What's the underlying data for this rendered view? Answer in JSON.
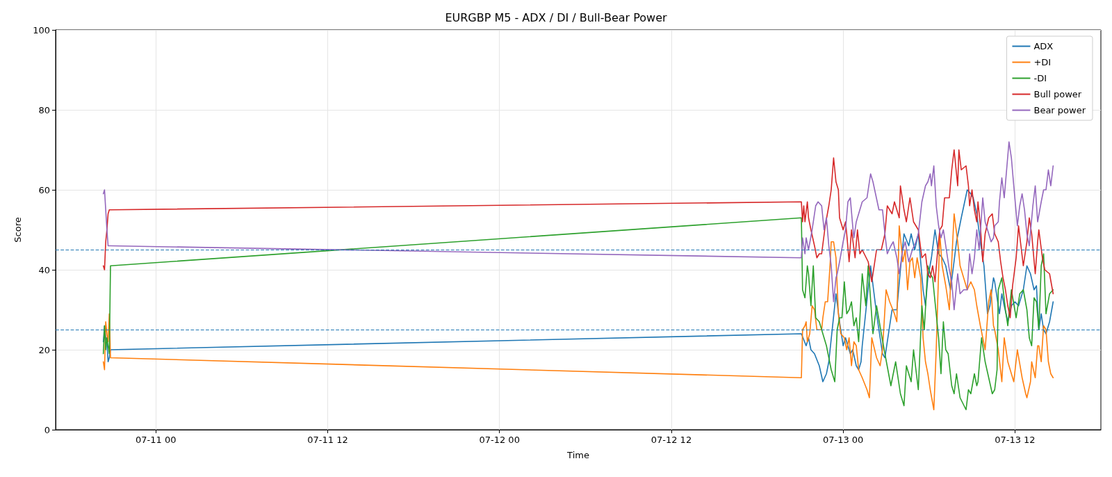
{
  "chart_data": {
    "type": "line",
    "title": "EURGBP M5 - ADX / DI / Bull-Bear Power",
    "xlabel": "Time",
    "ylabel": "Score",
    "xlim": [
      "--07-10T17:00",
      "--07-13T18:00"
    ],
    "xticks": [
      {
        "value": "--07-11T00:00",
        "label": "07-11 00"
      },
      {
        "value": "--07-11T12:00",
        "label": "07-11 12"
      },
      {
        "value": "--07-12T00:00",
        "label": "07-12 00"
      },
      {
        "value": "--07-12T12:00",
        "label": "07-12 12"
      },
      {
        "value": "--07-13T00:00",
        "label": "07-13 00"
      },
      {
        "value": "--07-13T12:00",
        "label": "07-13 12"
      }
    ],
    "ylim": [
      0,
      100
    ],
    "yticks": [
      0,
      20,
      40,
      60,
      80,
      100
    ],
    "grid": true,
    "legend": "top right",
    "marker": "none",
    "line_style": "solid",
    "ref_lines": [
      {
        "axis": "y",
        "value": 45,
        "color": "#1f77b4",
        "line_style": "dashed"
      },
      {
        "axis": "y",
        "value": 25,
        "color": "#1f77b4",
        "line_style": "dashed"
      }
    ],
    "series": [
      {
        "name": "ADX",
        "color": "#1f77b4",
        "x": [
          "--07-10T20:20",
          "--07-10T20:25",
          "--07-10T20:30",
          "--07-10T20:35",
          "--07-10T20:40",
          "--07-10T20:45",
          "--07-10T20:50",
          "--07-12T21:05",
          "--07-12T21:25",
          "--07-12T21:35",
          "--07-12T21:45",
          "--07-12T22:00",
          "--07-12T22:20",
          "--07-12T22:35",
          "--07-12T22:50",
          "--07-12T23:00",
          "--07-12T23:30",
          "--07-12T23:45",
          "--07-13T00:00",
          "--07-13T00:10",
          "--07-13T00:30",
          "--07-13T00:40",
          "--07-13T00:55",
          "--07-13T01:05",
          "--07-13T01:15",
          "--07-13T01:20",
          "--07-13T01:55",
          "--07-13T02:20",
          "--07-13T02:45",
          "--07-13T02:55",
          "--07-13T03:25",
          "--07-13T03:45",
          "--07-13T04:00",
          "--07-13T04:15",
          "--07-13T04:35",
          "--07-13T04:45",
          "--07-13T05:00",
          "--07-13T05:15",
          "--07-13T05:35",
          "--07-13T05:45",
          "--07-13T05:55",
          "--07-13T06:10",
          "--07-13T06:25",
          "--07-13T06:40",
          "--07-13T06:55",
          "--07-13T07:10",
          "--07-13T07:30",
          "--07-13T07:55",
          "--07-13T08:15",
          "--07-13T08:40",
          "--07-13T08:55",
          "--07-13T09:05",
          "--07-13T09:20",
          "--07-13T09:35",
          "--07-13T09:50",
          "--07-13T10:05",
          "--07-13T10:15",
          "--07-13T10:30",
          "--07-13T10:35",
          "--07-13T10:50",
          "--07-13T10:55",
          "--07-13T11:05",
          "--07-13T11:15",
          "--07-13T11:30",
          "--07-13T11:45",
          "--07-13T12:00",
          "--07-13T12:15",
          "--07-13T12:35",
          "--07-13T12:50",
          "--07-13T13:05",
          "--07-13T13:20",
          "--07-13T13:30",
          "--07-13T13:40",
          "--07-13T13:50",
          "--07-13T14:00",
          "--07-13T14:10",
          "--07-13T14:25",
          "--07-13T14:40"
        ],
        "values": [
          22,
          26,
          23,
          22,
          17,
          18,
          20,
          24,
          21,
          23,
          20,
          19,
          16,
          12,
          14,
          17,
          34,
          27,
          21,
          23,
          19,
          20,
          16,
          15,
          17,
          21,
          41,
          29,
          19,
          18,
          30,
          30,
          40,
          49,
          46,
          49,
          45,
          49,
          35,
          31,
          38,
          43,
          50,
          44,
          43,
          41,
          35,
          47,
          53,
          60,
          59,
          58,
          54,
          47,
          41,
          29,
          31,
          38,
          37,
          31,
          29,
          34,
          31,
          27,
          31,
          32,
          31,
          35,
          41,
          39,
          35,
          36,
          25,
          29,
          25,
          24,
          27,
          32
        ]
      },
      {
        "name": "+DI",
        "color": "#ff7f0e",
        "x": [
          "--07-10T20:20",
          "--07-10T20:25",
          "--07-10T20:30",
          "--07-10T20:35",
          "--07-10T20:40",
          "--07-10T20:45",
          "--07-10T20:50",
          "--07-12T21:05",
          "--07-12T21:10",
          "--07-12T21:20",
          "--07-12T21:25",
          "--07-12T21:30",
          "--07-12T21:40",
          "--07-12T21:50",
          "--07-12T22:00",
          "--07-12T22:10",
          "--07-12T22:30",
          "--07-12T22:35",
          "--07-12T22:45",
          "--07-12T22:55",
          "--07-12T23:05",
          "--07-12T23:10",
          "--07-12T23:20",
          "--07-12T23:30",
          "--07-12T23:40",
          "--07-12T23:50",
          "--07-13T00:05",
          "--07-13T00:15",
          "--07-13T00:25",
          "--07-13T00:35",
          "--07-13T00:45",
          "--07-13T00:55",
          "--07-13T01:05",
          "--07-13T01:20",
          "--07-13T01:40",
          "--07-13T01:50",
          "--07-13T02:00",
          "--07-13T02:20",
          "--07-13T02:35",
          "--07-13T02:45",
          "--07-13T03:00",
          "--07-13T03:15",
          "--07-13T03:35",
          "--07-13T03:45",
          "--07-13T03:55",
          "--07-13T04:10",
          "--07-13T04:20",
          "--07-13T04:30",
          "--07-13T04:40",
          "--07-13T04:50",
          "--07-13T05:00",
          "--07-13T05:10",
          "--07-13T05:25",
          "--07-13T05:35",
          "--07-13T05:45",
          "--07-13T05:55",
          "--07-13T06:05",
          "--07-13T06:20",
          "--07-13T06:30",
          "--07-13T06:45",
          "--07-13T06:55",
          "--07-13T07:10",
          "--07-13T07:25",
          "--07-13T07:45",
          "--07-13T08:00",
          "--07-13T08:10",
          "--07-13T08:25",
          "--07-13T08:40",
          "--07-13T08:55",
          "--07-13T09:10",
          "--07-13T09:20",
          "--07-13T09:35",
          "--07-13T09:45",
          "--07-13T09:55",
          "--07-13T10:10",
          "--07-13T10:20",
          "--07-13T10:30",
          "--07-13T10:35",
          "--07-13T10:50",
          "--07-13T11:05",
          "--07-13T11:15",
          "--07-13T11:30",
          "--07-13T11:45",
          "--07-13T11:55",
          "--07-13T12:10",
          "--07-13T12:30",
          "--07-13T12:45",
          "--07-13T12:50",
          "--07-13T13:05",
          "--07-13T13:10",
          "--07-13T13:25",
          "--07-13T13:35",
          "--07-13T13:40",
          "--07-13T13:50",
          "--07-13T14:00",
          "--07-13T14:10",
          "--07-13T14:20",
          "--07-13T14:30",
          "--07-13T14:40"
        ],
        "values": [
          17,
          15,
          27,
          24,
          22,
          29,
          18,
          13,
          25,
          26,
          27,
          22,
          24,
          31,
          30,
          25,
          25,
          28,
          32,
          32,
          41,
          47,
          47,
          43,
          29,
          24,
          23,
          20,
          23,
          16,
          22,
          21,
          15,
          13,
          10,
          8,
          23,
          18,
          16,
          20,
          35,
          32,
          29,
          27,
          51,
          42,
          45,
          35,
          42,
          43,
          38,
          43,
          38,
          23,
          17,
          14,
          10,
          5,
          20,
          49,
          41,
          36,
          30,
          54,
          47,
          41,
          38,
          35,
          37,
          35,
          31,
          26,
          23,
          20,
          32,
          35,
          26,
          25,
          20,
          12,
          23,
          17,
          14,
          12,
          20,
          13,
          9,
          8,
          12,
          17,
          13,
          21,
          21,
          17,
          26,
          25,
          17,
          14,
          13
        ]
      },
      {
        "name": "-DI",
        "color": "#2ca02c",
        "x": [
          "--07-10T20:20",
          "--07-10T20:25",
          "--07-10T20:30",
          "--07-10T20:35",
          "--07-10T20:40",
          "--07-10T20:45",
          "--07-10T20:50",
          "--07-12T21:05",
          "--07-12T21:10",
          "--07-12T21:20",
          "--07-12T21:30",
          "--07-12T21:35",
          "--07-12T21:45",
          "--07-12T21:55",
          "--07-12T22:05",
          "--07-12T22:20",
          "--07-12T22:50",
          "--07-12T23:10",
          "--07-12T23:25",
          "--07-12T23:35",
          "--07-12T23:45",
          "--07-12T23:55",
          "--07-13T00:05",
          "--07-13T00:15",
          "--07-13T00:25",
          "--07-13T00:35",
          "--07-13T00:45",
          "--07-13T00:55",
          "--07-13T01:05",
          "--07-13T01:20",
          "--07-13T01:35",
          "--07-13T01:45",
          "--07-13T02:05",
          "--07-13T02:20",
          "--07-13T02:40",
          "--07-13T02:55",
          "--07-13T03:20",
          "--07-13T03:40",
          "--07-13T04:00",
          "--07-13T04:15",
          "--07-13T04:25",
          "--07-13T04:45",
          "--07-13T04:55",
          "--07-13T05:15",
          "--07-13T05:30",
          "--07-13T05:40",
          "--07-13T05:55",
          "--07-13T06:05",
          "--07-13T06:15",
          "--07-13T06:30",
          "--07-13T06:40",
          "--07-13T06:50",
          "--07-13T07:00",
          "--07-13T07:10",
          "--07-13T07:20",
          "--07-13T07:35",
          "--07-13T07:45",
          "--07-13T07:55",
          "--07-13T08:10",
          "--07-13T08:35",
          "--07-13T08:45",
          "--07-13T08:55",
          "--07-13T09:10",
          "--07-13T09:20",
          "--07-13T09:25",
          "--07-13T09:40",
          "--07-13T09:55",
          "--07-13T10:10",
          "--07-13T10:25",
          "--07-13T10:35",
          "--07-13T10:45",
          "--07-13T10:50",
          "--07-13T11:05",
          "--07-13T11:20",
          "--07-13T11:30",
          "--07-13T11:45",
          "--07-13T12:05",
          "--07-13T12:20",
          "--07-13T12:35",
          "--07-13T12:50",
          "--07-13T13:00",
          "--07-13T13:10",
          "--07-13T13:20",
          "--07-13T13:30",
          "--07-13T13:40",
          "--07-13T13:50",
          "--07-13T14:00",
          "--07-13T14:10",
          "--07-13T14:25",
          "--07-13T14:40"
        ],
        "values": [
          19,
          26,
          20,
          23,
          21,
          19,
          41,
          53,
          35,
          33,
          41,
          39,
          31,
          41,
          28,
          27,
          21,
          15,
          12,
          25,
          28,
          28,
          37,
          29,
          30,
          32,
          26,
          28,
          22,
          39,
          31,
          41,
          24,
          31,
          24,
          19,
          11,
          17,
          9,
          6,
          16,
          12,
          20,
          10,
          31,
          25,
          41,
          39,
          38,
          29,
          23,
          14,
          27,
          20,
          19,
          11,
          9,
          14,
          8,
          5,
          10,
          9,
          14,
          11,
          12,
          23,
          17,
          13,
          9,
          10,
          15,
          35,
          38,
          30,
          26,
          35,
          28,
          34,
          35,
          30,
          23,
          21,
          33,
          32,
          25,
          41,
          44,
          29,
          34,
          35
        ]
      },
      {
        "name": "Bull power",
        "color": "#d62728",
        "x": [
          "--07-10T20:20",
          "--07-10T20:25",
          "--07-10T20:30",
          "--07-10T20:35",
          "--07-10T20:40",
          "--07-10T20:45",
          "--07-10T20:50",
          "--07-12T21:05",
          "--07-12T21:10",
          "--07-12T21:15",
          "--07-12T21:20",
          "--07-12T21:30",
          "--07-12T21:35",
          "--07-12T21:45",
          "--07-12T22:00",
          "--07-12T22:10",
          "--07-12T22:20",
          "--07-12T22:30",
          "--07-12T22:45",
          "--07-12T23:00",
          "--07-12T23:10",
          "--07-12T23:20",
          "--07-12T23:30",
          "--07-12T23:40",
          "--07-12T23:45",
          "--07-13T00:00",
          "--07-13T00:10",
          "--07-13T00:15",
          "--07-13T00:25",
          "--07-13T00:35",
          "--07-13T00:50",
          "--07-13T01:00",
          "--07-13T01:10",
          "--07-13T01:20",
          "--07-13T01:45",
          "--07-13T02:00",
          "--07-13T02:20",
          "--07-13T02:40",
          "--07-13T02:55",
          "--07-13T03:05",
          "--07-13T03:25",
          "--07-13T03:35",
          "--07-13T03:55",
          "--07-13T04:00",
          "--07-13T04:15",
          "--07-13T04:25",
          "--07-13T04:40",
          "--07-13T04:55",
          "--07-13T05:15",
          "--07-13T05:30",
          "--07-13T05:45",
          "--07-13T05:55",
          "--07-13T06:05",
          "--07-13T06:15",
          "--07-13T06:25",
          "--07-13T06:35",
          "--07-13T06:45",
          "--07-13T06:55",
          "--07-13T07:05",
          "--07-13T07:25",
          "--07-13T07:35",
          "--07-13T07:45",
          "--07-13T08:00",
          "--07-13T08:05",
          "--07-13T08:15",
          "--07-13T08:35",
          "--07-13T08:45",
          "--07-13T08:50",
          "--07-13T09:00",
          "--07-13T09:10",
          "--07-13T09:20",
          "--07-13T09:25",
          "--07-13T09:35",
          "--07-13T09:45",
          "--07-13T09:55",
          "--07-13T10:10",
          "--07-13T10:25",
          "--07-13T10:35",
          "--07-13T10:50",
          "--07-13T11:00",
          "--07-13T11:10",
          "--07-13T11:20",
          "--07-13T11:30",
          "--07-13T11:40",
          "--07-13T11:50",
          "--07-13T12:05",
          "--07-13T12:15",
          "--07-13T12:25",
          "--07-13T12:35",
          "--07-13T12:50",
          "--07-13T13:00",
          "--07-13T13:10",
          "--07-13T13:25",
          "--07-13T13:35",
          "--07-13T13:40",
          "--07-13T13:55",
          "--07-13T14:05",
          "--07-13T14:25",
          "--07-13T14:40"
        ],
        "values": [
          41,
          40,
          47,
          50,
          54,
          55,
          55,
          57,
          52,
          56,
          52,
          57,
          53,
          50,
          46,
          43,
          44,
          44,
          51,
          56,
          60,
          68,
          62,
          60,
          53,
          50,
          52,
          49,
          42,
          50,
          43,
          50,
          44,
          45,
          42,
          37,
          45,
          45,
          49,
          56,
          54,
          57,
          53,
          61,
          55,
          52,
          58,
          52,
          50,
          43,
          44,
          39,
          38,
          41,
          37,
          44,
          50,
          51,
          58,
          58,
          65,
          70,
          61,
          70,
          65,
          66,
          61,
          56,
          60,
          55,
          52,
          57,
          51,
          42,
          49,
          53,
          54,
          49,
          47,
          42,
          38,
          35,
          31,
          28,
          36,
          43,
          51,
          46,
          41,
          47,
          53,
          49,
          39,
          47,
          50,
          43,
          40,
          39,
          34
        ]
      },
      {
        "name": "Bear power",
        "color": "#9467bd",
        "x": [
          "--07-10T20:20",
          "--07-10T20:25",
          "--07-10T20:30",
          "--07-10T20:35",
          "--07-10T20:40",
          "--07-10T20:45",
          "--07-10T20:50",
          "--07-12T21:05",
          "--07-12T21:10",
          "--07-12T21:20",
          "--07-12T21:25",
          "--07-12T21:35",
          "--07-12T21:50",
          "--07-12T22:05",
          "--07-12T22:15",
          "--07-12T22:30",
          "--07-12T22:40",
          "--07-12T22:50",
          "--07-12T23:00",
          "--07-12T23:10",
          "--07-12T23:20",
          "--07-12T23:30",
          "--07-12T23:35",
          "--07-12T23:45",
          "--07-13T00:00",
          "--07-13T00:10",
          "--07-13T00:20",
          "--07-13T00:30",
          "--07-13T00:40",
          "--07-13T00:45",
          "--07-13T00:55",
          "--07-13T01:10",
          "--07-13T01:20",
          "--07-13T01:40",
          "--07-13T01:55",
          "--07-13T02:05",
          "--07-13T02:30",
          "--07-13T02:45",
          "--07-13T02:55",
          "--07-13T03:05",
          "--07-13T03:20",
          "--07-13T03:30",
          "--07-13T03:45",
          "--07-13T03:55",
          "--07-13T04:10",
          "--07-13T04:20",
          "--07-13T04:35",
          "--07-13T04:50",
          "--07-13T05:05",
          "--07-13T05:15",
          "--07-13T05:30",
          "--07-13T05:45",
          "--07-13T05:55",
          "--07-13T06:05",
          "--07-13T06:10",
          "--07-13T06:20",
          "--07-13T06:30",
          "--07-13T06:40",
          "--07-13T06:50",
          "--07-13T07:00",
          "--07-13T07:10",
          "--07-13T07:25",
          "--07-13T07:35",
          "--07-13T07:45",
          "--07-13T08:00",
          "--07-13T08:10",
          "--07-13T08:25",
          "--07-13T08:40",
          "--07-13T08:50",
          "--07-13T09:00",
          "--07-13T09:10",
          "--07-13T09:20",
          "--07-13T09:30",
          "--07-13T09:45",
          "--07-13T09:55",
          "--07-13T10:10",
          "--07-13T10:20",
          "--07-13T10:30",
          "--07-13T10:35",
          "--07-13T10:50",
          "--07-13T10:55",
          "--07-13T11:05",
          "--07-13T11:15",
          "--07-13T11:25",
          "--07-13T11:35",
          "--07-13T11:45",
          "--07-13T11:55",
          "--07-13T12:10",
          "--07-13T12:20",
          "--07-13T12:30",
          "--07-13T12:40",
          "--07-13T12:50",
          "--07-13T13:00",
          "--07-13T13:15",
          "--07-13T13:25",
          "--07-13T13:35",
          "--07-13T13:50",
          "--07-13T14:00",
          "--07-13T14:10",
          "--07-13T14:20",
          "--07-13T14:30",
          "--07-13T14:40"
        ],
        "values": [
          59,
          60,
          55,
          50,
          46,
          46,
          46,
          43,
          48,
          44,
          48,
          45,
          50,
          56,
          57,
          56,
          50,
          53,
          46,
          41,
          32,
          38,
          39,
          42,
          47,
          50,
          57,
          58,
          51,
          48,
          52,
          55,
          57,
          58,
          64,
          62,
          55,
          55,
          49,
          44,
          46,
          47,
          43,
          39,
          45,
          47,
          42,
          45,
          47,
          49,
          57,
          61,
          62,
          64,
          61,
          66,
          56,
          51,
          48,
          50,
          46,
          40,
          37,
          30,
          39,
          34,
          35,
          35,
          44,
          39,
          43,
          50,
          45,
          58,
          52,
          49,
          47,
          48,
          51,
          52,
          57,
          63,
          58,
          65,
          72,
          68,
          61,
          51,
          56,
          59,
          55,
          49,
          46,
          56,
          61,
          52,
          57,
          60,
          60,
          65,
          61,
          66
        ]
      }
    ]
  }
}
